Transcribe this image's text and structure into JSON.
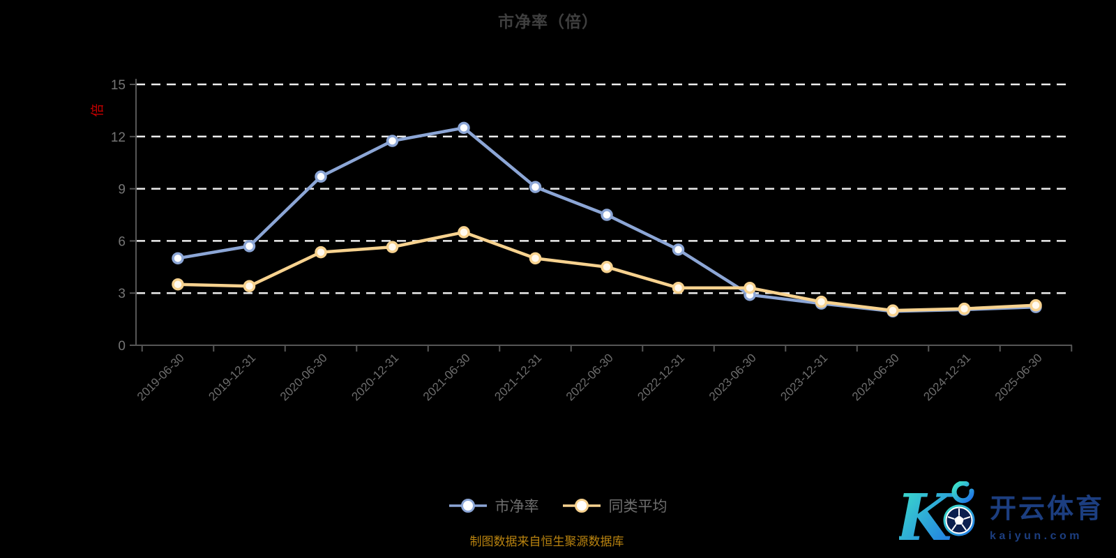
{
  "chart_data": {
    "type": "line",
    "title": "市净率（倍）",
    "y_axis_name": "倍",
    "categories": [
      "2019-06-30",
      "2019-12-31",
      "2020-06-30",
      "2020-12-31",
      "2021-06-30",
      "2021-12-31",
      "2022-06-30",
      "2022-12-31",
      "2023-06-30",
      "2023-12-31",
      "2024-06-30",
      "2024-12-31",
      "2025-06-30"
    ],
    "series": [
      {
        "name": "市净率",
        "color": "#8ca6d6",
        "marker_fill": "#ffffff",
        "values": [
          5.0,
          5.7,
          9.7,
          11.75,
          12.5,
          9.1,
          7.5,
          5.5,
          2.9,
          2.4,
          1.95,
          2.05,
          2.2
        ]
      },
      {
        "name": "同类平均",
        "color": "#f7d28f",
        "marker_fill": "#fff9ee",
        "values": [
          3.5,
          3.4,
          5.35,
          5.65,
          6.5,
          5.0,
          4.5,
          3.3,
          3.3,
          2.5,
          2.0,
          2.1,
          2.3
        ]
      }
    ],
    "ylim": [
      0,
      15
    ],
    "yticks": [
      0,
      3,
      6,
      9,
      12,
      15
    ],
    "grid": "horizontal-dashed-white",
    "legend_position": "bottom-center"
  },
  "footer": {
    "note": "制图数据来自恒生聚源数据库"
  },
  "watermark": {
    "brand": "开云体育",
    "domain": "kaiyun.com"
  },
  "colors": {
    "background": "#000000",
    "title": "#3f3f3f",
    "axis": "#565656",
    "grid": "#ededed",
    "y_tick_label": "#757575",
    "x_tick_label": "#6d6d6d",
    "axis_name": "#c40000",
    "legend_label": "#6d6d6d",
    "footer": "#b9830f",
    "watermark": "#1c3e80"
  }
}
